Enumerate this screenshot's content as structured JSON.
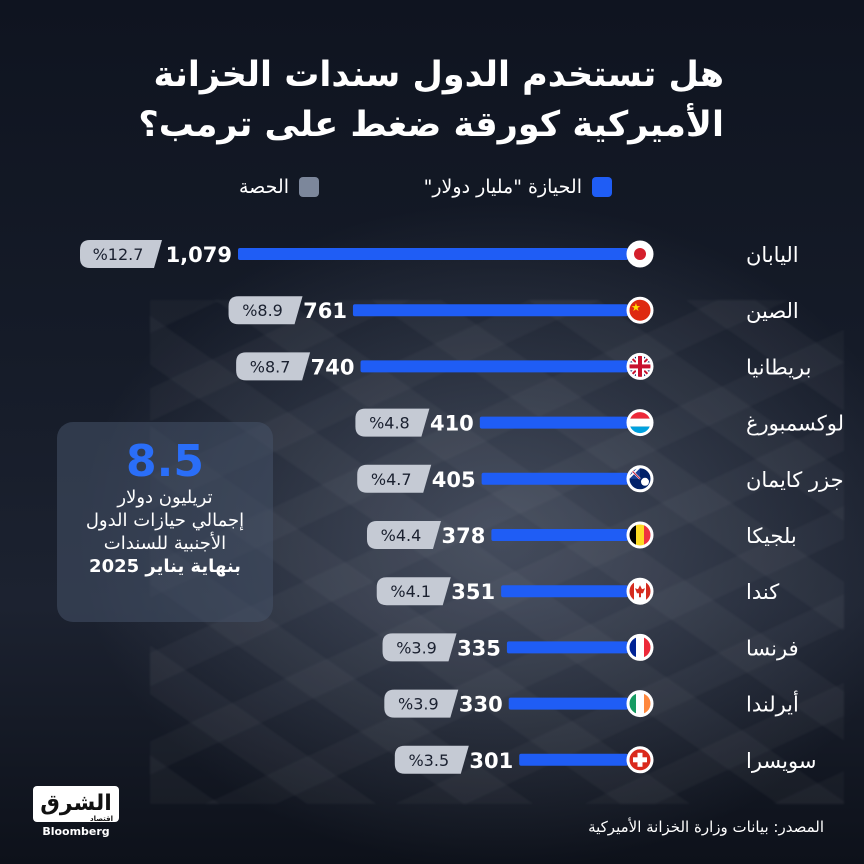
{
  "title": {
    "line1": "هل تستخدم الدول سندات الخزانة",
    "line2": "الأميركية كورقة ضغط على ترمب؟"
  },
  "legend": {
    "holding": "الحيازة \"مليار دولار\"",
    "share": "الحصة"
  },
  "colors": {
    "bar": "#1f5df5",
    "share_pill": "#c5cad4",
    "highlight": "#2a6ef8"
  },
  "chart_data": {
    "type": "bar",
    "orientation": "horizontal",
    "categories": [
      "اليابان",
      "الصين",
      "بريطانيا",
      "لوكسمبورغ",
      "جزر كايمان",
      "بلجيكا",
      "كندا",
      "فرنسا",
      "أيرلندا",
      "سويسرا"
    ],
    "series": [
      {
        "name": "الحيازة \"مليار دولار\"",
        "values": [
          1079,
          761,
          740,
          410,
          405,
          378,
          351,
          335,
          330,
          301
        ],
        "labels": [
          "1,079",
          "761",
          "740",
          "410",
          "405",
          "378",
          "351",
          "335",
          "330",
          "301"
        ]
      },
      {
        "name": "الحصة",
        "values": [
          12.7,
          8.9,
          8.7,
          4.8,
          4.7,
          4.4,
          4.1,
          3.9,
          3.9,
          3.5
        ],
        "labels": [
          "%12.7",
          "%8.9",
          "%8.7",
          "%4.8",
          "%4.7",
          "%4.4",
          "%4.1",
          "%3.9",
          "%3.9",
          "%3.5"
        ]
      }
    ],
    "flags": [
      "japan-flag-icon",
      "china-flag-icon",
      "uk-flag-icon",
      "luxembourg-flag-icon",
      "cayman-islands-flag-icon",
      "belgium-flag-icon",
      "canada-flag-icon",
      "france-flag-icon",
      "ireland-flag-icon",
      "switzerland-flag-icon"
    ]
  },
  "total": {
    "value": "8.5",
    "line1": "تريليون دولار",
    "line2": "إجمالي حيازات الدول",
    "line3": "الأجنبية للسندات",
    "line4": "بنهاية يناير 2025"
  },
  "logo": {
    "main": "الشرق",
    "sub": "اقتصاد",
    "partner": "Bloomberg"
  },
  "source": "المصدر: بيانات وزارة الخزانة الأميركية"
}
